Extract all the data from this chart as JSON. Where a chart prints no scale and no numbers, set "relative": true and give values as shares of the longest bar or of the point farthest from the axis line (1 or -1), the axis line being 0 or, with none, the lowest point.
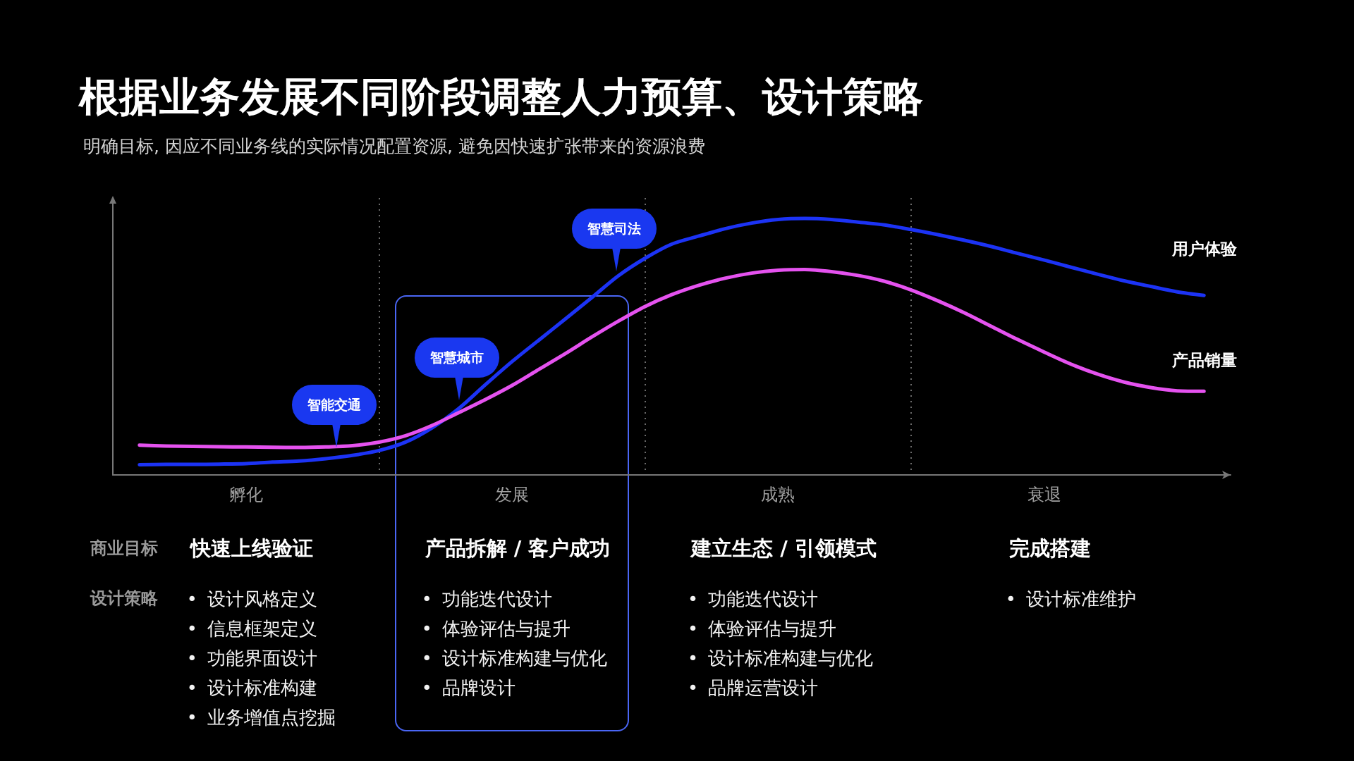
{
  "chart_data": {
    "type": "line",
    "title": "根据业务发展不同阶段调整人力预算、设计策略",
    "subtitle": "明确目标, 因应不同业务线的实际情况配置资源, 避免因快速扩张带来的资源浪费",
    "relative": true,
    "categories": [
      null,
      null,
      null,
      null,
      null,
      "孵化",
      null,
      null,
      null,
      null,
      null,
      null,
      null,
      null,
      null,
      "发展",
      null,
      null,
      null,
      null,
      null,
      null,
      null,
      null,
      null,
      "成熟",
      null,
      null,
      null,
      null,
      null,
      null,
      null,
      null,
      null,
      "衰退",
      null,
      null,
      null,
      null,
      null,
      null,
      null
    ],
    "grid": "x",
    "series": [
      {
        "name": "用户体验",
        "color": "#1c33f5",
        "values": [
          null,
          0.04,
          0.041,
          0.041,
          0.042,
          0.044,
          0.05,
          0.054,
          0.063,
          0.076,
          0.095,
          0.128,
          0.184,
          0.259,
          0.352,
          0.442,
          0.525,
          0.608,
          0.692,
          0.777,
          0.845,
          0.9,
          0.931,
          0.96,
          0.982,
          0.996,
          1.0,
          0.996,
          0.986,
          0.975,
          0.957,
          0.937,
          0.915,
          0.891,
          0.864,
          0.838,
          0.81,
          0.783,
          0.757,
          0.735,
          0.714,
          0.7,
          null
        ]
      },
      {
        "name": "产品销量",
        "color": "#e552ef",
        "values": [
          null,
          0.116,
          0.113,
          0.111,
          0.11,
          0.109,
          0.108,
          0.107,
          0.109,
          0.114,
          0.128,
          0.153,
          0.193,
          0.243,
          0.294,
          0.349,
          0.411,
          0.473,
          0.538,
          0.6,
          0.657,
          0.703,
          0.739,
          0.767,
          0.787,
          0.798,
          0.801,
          0.793,
          0.778,
          0.755,
          0.721,
          0.679,
          0.632,
          0.58,
          0.528,
          0.479,
          0.432,
          0.393,
          0.362,
          0.341,
          0.328,
          0.326,
          null
        ]
      }
    ],
    "annotations": [
      "商业目标",
      "设计策略",
      "智能交通",
      "智慧城市",
      "智慧司法",
      "快速上线验证",
      "• 设计风格定义",
      "• 信息框架定义",
      "• 功能界面设计",
      "• 设计标准构建",
      "• 业务增值点挖掘",
      "产品拆解 / 客户成功",
      "• 功能迭代设计",
      "• 体验评估与提升",
      "• 设计标准构建与优化",
      "• 品牌设计",
      "建立生态 / 引领模式",
      "• 功能迭代设计",
      "• 体验评估与提升",
      "• 设计标准构建与优化",
      "• 品牌运营设计",
      "完成搭建",
      "• 设计标准维护"
    ]
  }
}
